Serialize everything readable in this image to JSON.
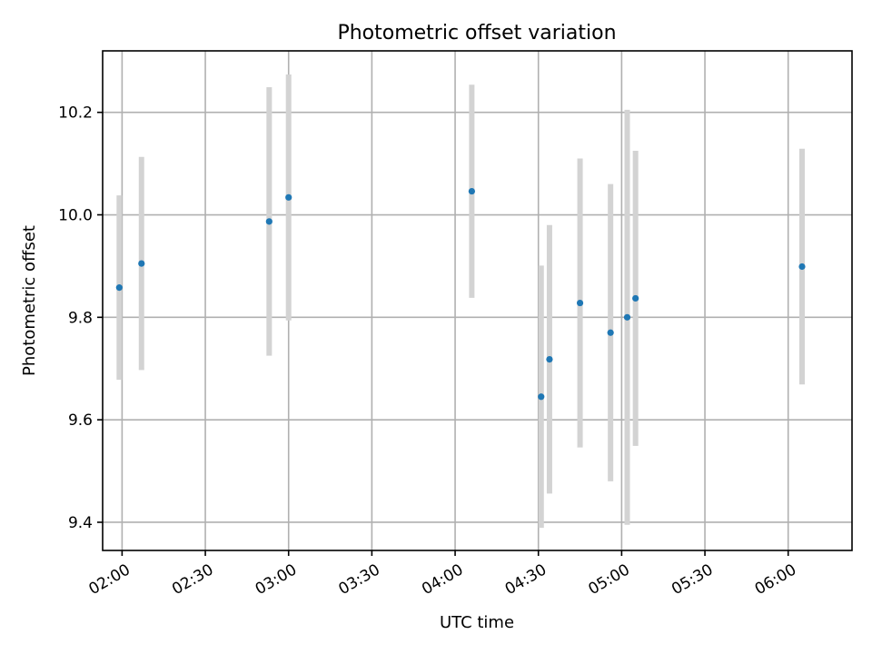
{
  "chart_data": {
    "type": "scatter",
    "title": "Photometric offset variation",
    "xlabel": "UTC time",
    "ylabel": "Photometric offset",
    "x_unit": "time HH:MM (UTC)",
    "xlim": [
      "01:53",
      "06:23"
    ],
    "ylim": [
      9.345,
      10.32
    ],
    "x_ticks": [
      "02:00",
      "02:30",
      "03:00",
      "03:30",
      "04:00",
      "04:30",
      "05:00",
      "05:30",
      "06:00"
    ],
    "y_ticks": [
      9.4,
      9.6,
      9.8,
      10.0,
      10.2
    ],
    "y_tick_labels": [
      "9.4",
      "9.6",
      "9.8",
      "10.0",
      "10.2"
    ],
    "grid": true,
    "x_tick_rotation": "30 degrees",
    "marker_color": "#1f77b4",
    "errorbar_color": "#d3d3d3",
    "points": [
      {
        "x": "01:59",
        "y": 9.858,
        "err": 0.18
      },
      {
        "x": "02:07",
        "y": 9.905,
        "err": 0.208
      },
      {
        "x": "02:53",
        "y": 9.987,
        "err": 0.262
      },
      {
        "x": "03:00",
        "y": 10.034,
        "err": 0.24
      },
      {
        "x": "04:06",
        "y": 10.046,
        "err": 0.208
      },
      {
        "x": "04:31",
        "y": 9.645,
        "err": 0.256
      },
      {
        "x": "04:34",
        "y": 9.718,
        "err": 0.262
      },
      {
        "x": "04:45",
        "y": 9.828,
        "err": 0.282
      },
      {
        "x": "04:56",
        "y": 9.77,
        "err": 0.29
      },
      {
        "x": "05:02",
        "y": 9.8,
        "err": 0.405
      },
      {
        "x": "05:05",
        "y": 9.837,
        "err": 0.288
      },
      {
        "x": "06:05",
        "y": 9.899,
        "err": 0.23
      }
    ]
  }
}
